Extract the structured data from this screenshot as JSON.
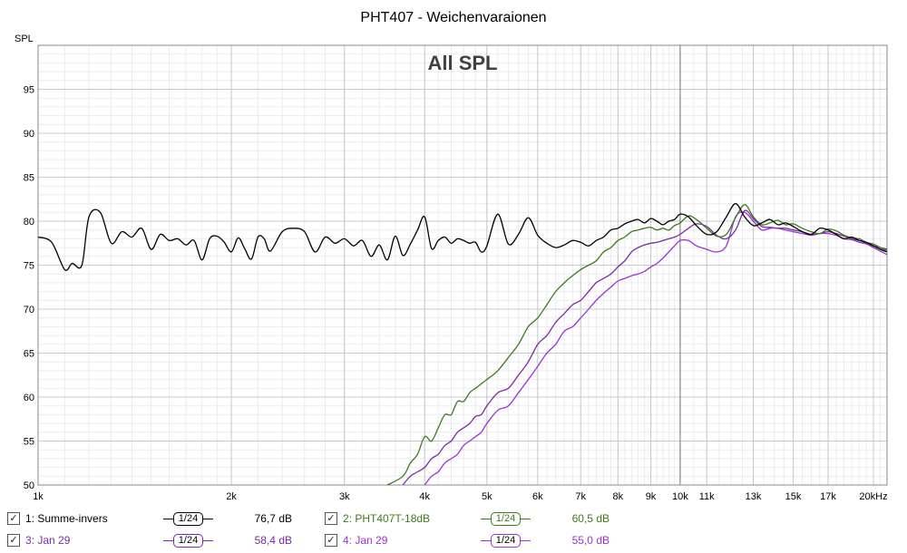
{
  "chart_data": {
    "type": "line",
    "title": "PHT407 - Weichenvaraionen",
    "subtitle": "All SPL",
    "ylabel": "SPL",
    "xscale": "log",
    "xlim": [
      1000,
      21000
    ],
    "ylim": [
      50,
      100
    ],
    "grid": true,
    "yticks": [
      "95",
      "90",
      "85",
      "80",
      "75",
      "70",
      "65",
      "60",
      "55",
      "50"
    ],
    "xticks": [
      {
        "value": 1000,
        "label": "1k"
      },
      {
        "value": 2000,
        "label": "2k"
      },
      {
        "value": 3000,
        "label": "3k"
      },
      {
        "value": 4000,
        "label": "4k"
      },
      {
        "value": 5000,
        "label": "5k"
      },
      {
        "value": 6000,
        "label": "6k"
      },
      {
        "value": 7000,
        "label": "7k"
      },
      {
        "value": 8000,
        "label": "8k"
      },
      {
        "value": 9000,
        "label": "9k"
      },
      {
        "value": 10000,
        "label": "10k"
      },
      {
        "value": 11000,
        "label": "11k"
      },
      {
        "value": 13000,
        "label": "13k"
      },
      {
        "value": 15000,
        "label": "15k"
      },
      {
        "value": 17000,
        "label": "17k"
      },
      {
        "value": 20000,
        "label": "20kHz"
      }
    ],
    "series": [
      {
        "name": "1: Summe-invers",
        "color": "#000000",
        "x": [
          1000,
          1050,
          1100,
          1130,
          1170,
          1200,
          1250,
          1300,
          1350,
          1400,
          1450,
          1500,
          1550,
          1600,
          1650,
          1700,
          1750,
          1800,
          1850,
          1900,
          1950,
          2000,
          2050,
          2100,
          2150,
          2200,
          2250,
          2300,
          2400,
          2500,
          2600,
          2700,
          2800,
          2900,
          3000,
          3100,
          3200,
          3300,
          3400,
          3500,
          3600,
          3700,
          3800,
          3900,
          4000,
          4100,
          4200,
          4300,
          4400,
          4500,
          4600,
          4700,
          4800,
          4900,
          5000,
          5200,
          5400,
          5600,
          5800,
          6000,
          6200,
          6400,
          6600,
          6800,
          7000,
          7200,
          7400,
          7600,
          7800,
          8000,
          8200,
          8400,
          8600,
          8800,
          9000,
          9200,
          9400,
          9600,
          9800,
          10000,
          10300,
          10600,
          11000,
          11400,
          11800,
          12200,
          12600,
          13000,
          13400,
          13800,
          14200,
          14600,
          15000,
          15500,
          16000,
          16500,
          17000,
          17500,
          18000,
          18500,
          19000,
          19500,
          20000,
          20500,
          21000
        ],
        "y": [
          78.2,
          77.6,
          74.5,
          75.2,
          75.0,
          80.5,
          81.0,
          77.5,
          78.8,
          78.2,
          79.2,
          76.8,
          78.5,
          77.8,
          78.0,
          77.3,
          77.8,
          75.6,
          78.0,
          78.3,
          77.6,
          76.5,
          78.1,
          76.8,
          75.7,
          78.2,
          78.0,
          76.6,
          78.8,
          79.2,
          78.8,
          76.5,
          78.2,
          77.5,
          78.0,
          77.2,
          77.8,
          76.0,
          77.3,
          75.6,
          78.3,
          76.1,
          77.4,
          79.0,
          80.5,
          76.9,
          77.8,
          78.2,
          77.5,
          78.0,
          77.8,
          77.5,
          77.6,
          76.5,
          77.2,
          80.8,
          77.4,
          78.5,
          80.4,
          78.4,
          77.5,
          77.0,
          77.3,
          77.8,
          77.6,
          77.2,
          77.8,
          78.2,
          79.0,
          79.2,
          79.7,
          80.0,
          80.2,
          79.8,
          80.3,
          80.0,
          79.6,
          80.0,
          80.2,
          80.8,
          80.5,
          79.5,
          78.5,
          78.8,
          80.5,
          82.0,
          80.5,
          79.5,
          79.8,
          80.2,
          79.6,
          79.8,
          79.4,
          78.8,
          78.5,
          79.2,
          79.0,
          78.5,
          78.0,
          78.2,
          77.8,
          77.6,
          77.2,
          76.8,
          76.5
        ]
      },
      {
        "name": "2: PHT407T-18dB",
        "color": "#3e7a1d",
        "x": [
          3500,
          3700,
          3800,
          3900,
          4000,
          4100,
          4200,
          4300,
          4400,
          4500,
          4600,
          4700,
          4800,
          4900,
          5000,
          5200,
          5400,
          5600,
          5800,
          6000,
          6200,
          6400,
          6600,
          6800,
          7000,
          7200,
          7400,
          7600,
          7800,
          8000,
          8200,
          8400,
          8600,
          8800,
          9000,
          9200,
          9400,
          9600,
          9800,
          10000,
          10300,
          10600,
          11000,
          11400,
          11800,
          12200,
          12600,
          13000,
          13400,
          13800,
          14200,
          14600,
          15000,
          15500,
          16000,
          16500,
          17000,
          17500,
          18000,
          18500,
          19000,
          19500,
          20000,
          20500,
          21000
        ],
        "y": [
          50.0,
          51.0,
          52.5,
          53.5,
          55.5,
          55.0,
          56.5,
          58.0,
          58.0,
          59.5,
          59.5,
          60.5,
          61.0,
          61.5,
          62.0,
          63.0,
          64.5,
          66.0,
          68.0,
          69.0,
          70.5,
          72.0,
          73.0,
          73.8,
          74.5,
          75.0,
          75.5,
          76.5,
          77.0,
          77.8,
          78.2,
          78.8,
          79.0,
          79.2,
          79.3,
          79.0,
          79.2,
          79.0,
          79.5,
          79.8,
          80.6,
          80.2,
          79.2,
          78.3,
          78.5,
          80.4,
          81.9,
          80.5,
          79.6,
          79.8,
          80.1,
          79.6,
          79.7,
          79.2,
          78.8,
          78.6,
          79.1,
          78.9,
          78.4,
          78.1,
          78.0,
          77.6,
          77.4,
          77.0,
          76.6
        ]
      },
      {
        "name": "3: Jan 29",
        "color": "#7a2aa6",
        "x": [
          3700,
          3800,
          3900,
          4000,
          4100,
          4200,
          4300,
          4400,
          4500,
          4600,
          4700,
          4800,
          4900,
          5000,
          5200,
          5400,
          5600,
          5800,
          6000,
          6200,
          6400,
          6600,
          6800,
          7000,
          7200,
          7400,
          7600,
          7800,
          8000,
          8200,
          8400,
          8600,
          8800,
          9000,
          9200,
          9400,
          9600,
          9800,
          10000,
          10300,
          10600,
          11000,
          11400,
          11800,
          12200,
          12600,
          13000,
          13400,
          13800,
          14200,
          14600,
          15000,
          15500,
          16000,
          16500,
          17000,
          17500,
          18000,
          18500,
          19000,
          19500,
          20000,
          20500,
          21000
        ],
        "y": [
          50.0,
          51.0,
          51.5,
          52.0,
          53.0,
          53.5,
          54.5,
          55.0,
          56.0,
          56.5,
          57.0,
          57.8,
          58.0,
          59.0,
          60.5,
          61.0,
          62.5,
          64.0,
          66.0,
          67.0,
          68.5,
          69.5,
          70.5,
          71.0,
          72.0,
          73.0,
          73.5,
          74.0,
          74.8,
          75.5,
          76.5,
          77.0,
          77.3,
          77.5,
          77.6,
          77.8,
          78.0,
          78.2,
          78.5,
          79.2,
          79.7,
          79.4,
          78.4,
          78.0,
          79.0,
          81.2,
          80.3,
          79.4,
          79.3,
          79.2,
          79.2,
          79.0,
          78.8,
          78.5,
          78.6,
          78.8,
          78.6,
          78.3,
          78.0,
          77.8,
          77.5,
          77.2,
          77.0,
          76.8
        ]
      },
      {
        "name": "4: Jan 29",
        "color": "#9b30d9",
        "x": [
          4000,
          4100,
          4200,
          4300,
          4400,
          4500,
          4600,
          4700,
          4800,
          4900,
          5000,
          5200,
          5400,
          5600,
          5800,
          6000,
          6200,
          6400,
          6600,
          6800,
          7000,
          7200,
          7400,
          7600,
          7800,
          8000,
          8200,
          8400,
          8600,
          8800,
          9000,
          9200,
          9400,
          9600,
          9800,
          10000,
          10300,
          10600,
          11000,
          11400,
          11800,
          12200,
          12600,
          13000,
          13400,
          13800,
          14200,
          14600,
          15000,
          15500,
          16000,
          16500,
          17000,
          17500,
          18000,
          18500,
          19000,
          19500,
          20000,
          20500,
          21000
        ],
        "y": [
          50.0,
          51.0,
          51.5,
          52.5,
          53.0,
          53.5,
          54.5,
          55.0,
          55.5,
          56.0,
          57.0,
          58.5,
          59.0,
          60.5,
          62.0,
          63.5,
          65.0,
          66.0,
          67.5,
          68.0,
          69.0,
          70.0,
          71.0,
          71.8,
          72.5,
          73.2,
          73.5,
          73.8,
          74.0,
          74.3,
          74.8,
          75.2,
          75.8,
          76.5,
          77.2,
          77.8,
          77.8,
          77.2,
          76.8,
          76.5,
          77.2,
          80.5,
          81.0,
          80.0,
          79.0,
          79.2,
          79.2,
          79.0,
          78.8,
          78.6,
          78.4,
          78.6,
          78.6,
          78.4,
          78.0,
          77.9,
          77.6,
          77.4,
          77.0,
          76.6,
          76.2
        ]
      }
    ]
  },
  "legend": [
    {
      "checked": "✓",
      "label": "1: Summe-invers",
      "smoothing": "1/24",
      "value": "76,7 dB",
      "color": "#000000"
    },
    {
      "checked": "✓",
      "label": "2: PHT407T-18dB",
      "smoothing": "1/24",
      "value": "60,5 dB",
      "color": "#3e7a1d"
    },
    {
      "checked": "✓",
      "label": "3: Jan 29",
      "smoothing": "1/24",
      "value": "58,4 dB",
      "color": "#7a2aa6"
    },
    {
      "checked": "✓",
      "label": "4: Jan 29",
      "smoothing": "1/24",
      "value": "55,0 dB",
      "color": "#9b30d9"
    }
  ]
}
